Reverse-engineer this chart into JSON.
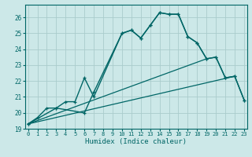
{
  "title": "",
  "xlabel": "Humidex (Indice chaleur)",
  "ylabel": "",
  "bg_color": "#cce8e8",
  "grid_color": "#aacccc",
  "line_color": "#006666",
  "ylim": [
    19,
    26.8
  ],
  "xlim": [
    -0.3,
    23.3
  ],
  "yticks": [
    19,
    20,
    21,
    22,
    23,
    24,
    25,
    26
  ],
  "xticks": [
    0,
    1,
    2,
    3,
    4,
    5,
    6,
    7,
    8,
    9,
    10,
    11,
    12,
    13,
    14,
    15,
    16,
    17,
    18,
    19,
    20,
    21,
    22,
    23
  ],
  "series": [
    {
      "x": [
        0,
        1,
        2,
        3,
        4,
        5,
        6,
        7,
        10,
        11,
        12,
        13,
        14,
        15,
        16,
        17,
        18,
        19,
        20,
        21,
        22,
        23
      ],
      "y": [
        19.3,
        19.7,
        20.3,
        20.3,
        20.7,
        20.7,
        22.2,
        21.0,
        25.0,
        25.2,
        24.7,
        25.5,
        26.3,
        26.2,
        26.2,
        24.8,
        24.4,
        23.4,
        23.5,
        22.2,
        22.3,
        20.8
      ],
      "marker": "+",
      "linestyle": "-",
      "linewidth": 1.0
    },
    {
      "x": [
        0,
        3,
        6,
        7,
        10,
        11,
        12,
        13,
        14,
        15,
        16,
        17,
        18,
        19,
        20,
        21,
        22,
        23
      ],
      "y": [
        19.3,
        20.3,
        20.0,
        21.3,
        25.0,
        25.2,
        24.7,
        25.5,
        26.3,
        26.2,
        26.2,
        24.8,
        24.4,
        23.4,
        23.5,
        22.2,
        22.3,
        20.8
      ],
      "marker": "+",
      "linestyle": "-",
      "linewidth": 1.0
    },
    {
      "x": [
        0,
        19
      ],
      "y": [
        19.3,
        23.4
      ],
      "marker": null,
      "linestyle": "-",
      "linewidth": 0.9
    },
    {
      "x": [
        0,
        22
      ],
      "y": [
        19.3,
        22.3
      ],
      "marker": null,
      "linestyle": "-",
      "linewidth": 0.9
    }
  ]
}
